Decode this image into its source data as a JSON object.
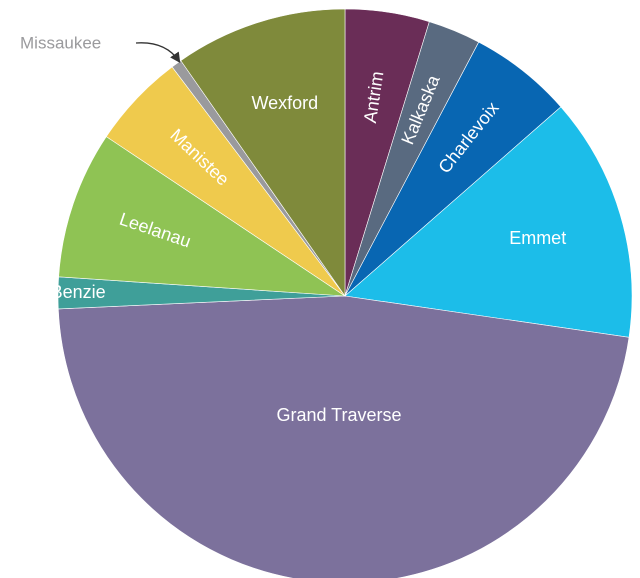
{
  "chart_data": {
    "type": "pie",
    "title": "",
    "start_direction": "top",
    "direction": "clockwise",
    "slices": [
      {
        "label": "Antrim",
        "value": 4.8,
        "color": "#6a2d57",
        "label_color": "#ffffff",
        "rotate": true
      },
      {
        "label": "Kalkaska",
        "value": 3.0,
        "color": "#596a80",
        "label_color": "#ffffff",
        "rotate": true
      },
      {
        "label": "Charlevoix",
        "value": 5.9,
        "color": "#0866b2",
        "label_color": "#ffffff",
        "rotate": true
      },
      {
        "label": "Emmet",
        "value": 13.9,
        "color": "#1cbde9",
        "label_color": "#ffffff",
        "rotate": false
      },
      {
        "label": "Grand Traverse",
        "value": 47.5,
        "color": "#7c719c",
        "label_color": "#ffffff",
        "rotate": false
      },
      {
        "label": "Benzie",
        "value": 1.8,
        "color": "#3f9f99",
        "label_color": "#ffffff",
        "rotate": false
      },
      {
        "label": "Leelanau",
        "value": 8.4,
        "color": "#8fc354",
        "label_color": "#ffffff",
        "rotate": true
      },
      {
        "label": "Manistee",
        "value": 5.4,
        "color": "#efca4d",
        "label_color": "#ffffff",
        "rotate": true
      },
      {
        "label": "Missaukee",
        "value": 0.6,
        "color": "#9a9a9d",
        "label_color": "#9a9a9d",
        "rotate": false,
        "callout": true
      },
      {
        "label": "Wexford",
        "value": 9.8,
        "color": "#7f8a3b",
        "label_color": "#ffffff",
        "rotate": false
      }
    ]
  }
}
